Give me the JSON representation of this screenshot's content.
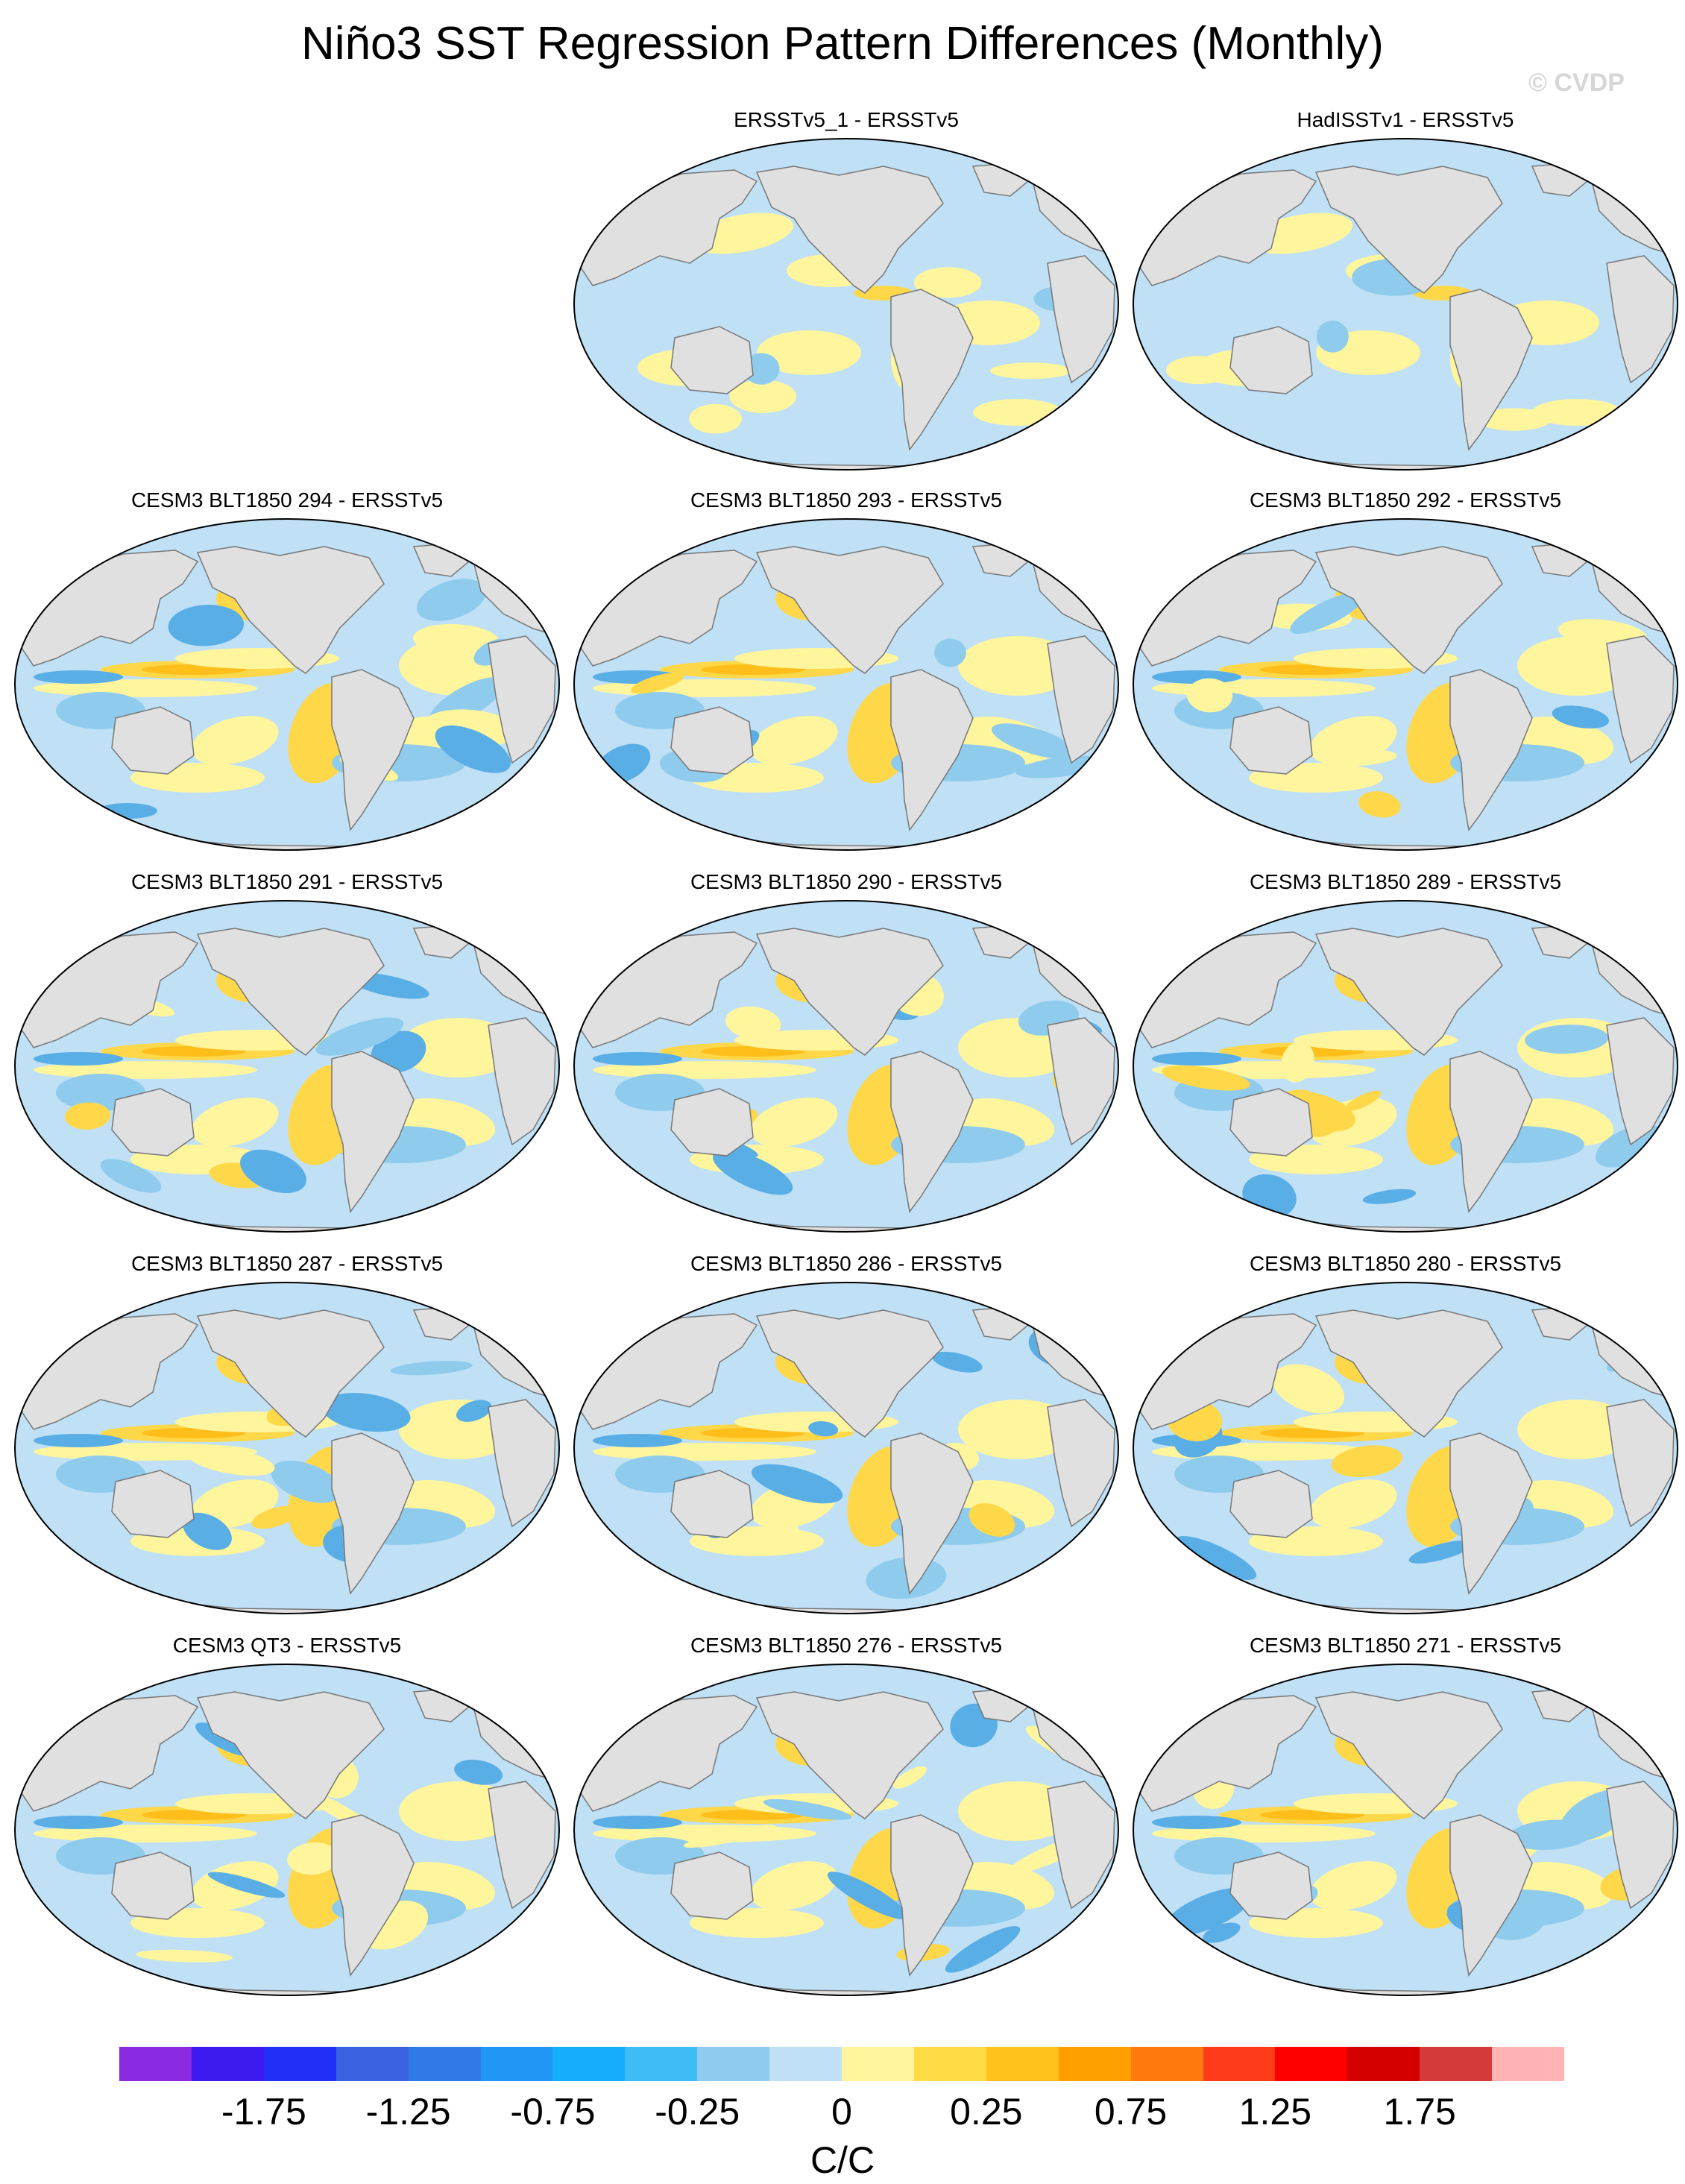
{
  "title": "Niño3 SST Regression Pattern Differences (Monthly)",
  "watermark": "© CVDP",
  "map_colors": {
    "land": "#e0e0e0",
    "coast": "#777777",
    "ocean_base": "#bfe0f5"
  },
  "panels": [
    {
      "label": "ERSSTv5_1 - ERSSTv5",
      "pattern": "obs1"
    },
    {
      "label": "HadISSTv1 - ERSSTv5",
      "pattern": "obs2"
    },
    {
      "label": "CESM3 BLT1850 294 - ERSSTv5",
      "pattern": "model"
    },
    {
      "label": "CESM3 BLT1850 293 - ERSSTv5",
      "pattern": "model"
    },
    {
      "label": "CESM3 BLT1850 292 - ERSSTv5",
      "pattern": "model"
    },
    {
      "label": "CESM3 BLT1850 291 - ERSSTv5",
      "pattern": "model"
    },
    {
      "label": "CESM3 BLT1850 290 - ERSSTv5",
      "pattern": "model"
    },
    {
      "label": "CESM3 BLT1850 289 - ERSSTv5",
      "pattern": "model"
    },
    {
      "label": "CESM3 BLT1850 287 - ERSSTv5",
      "pattern": "model"
    },
    {
      "label": "CESM3 BLT1850 286 - ERSSTv5",
      "pattern": "model"
    },
    {
      "label": "CESM3 BLT1850 280 - ERSSTv5",
      "pattern": "model"
    },
    {
      "label": "CESM3 QT3 - ERSSTv5",
      "pattern": "model"
    },
    {
      "label": "CESM3 BLT1850 276 - ERSSTv5",
      "pattern": "model"
    },
    {
      "label": "CESM3 BLT1850 271 - ERSSTv5",
      "pattern": "model"
    }
  ],
  "colorbar": {
    "colors": [
      "#8a2be2",
      "#3d1aef",
      "#1f2ff5",
      "#3a62e0",
      "#2f7ae8",
      "#2196f5",
      "#14aefa",
      "#3fbcf6",
      "#8ecbec",
      "#bfe0f5",
      "#fff59d",
      "#ffdc45",
      "#ffc11a",
      "#ffa000",
      "#ff7a0d",
      "#ff3c1a",
      "#ff0000",
      "#d40000",
      "#d43a3a",
      "#ffb3b3"
    ],
    "tick_labels": [
      "-1.75",
      "-1.25",
      "-0.75",
      "-0.25",
      "0",
      "0.25",
      "0.75",
      "1.25",
      "1.75"
    ],
    "units": "C/C"
  }
}
